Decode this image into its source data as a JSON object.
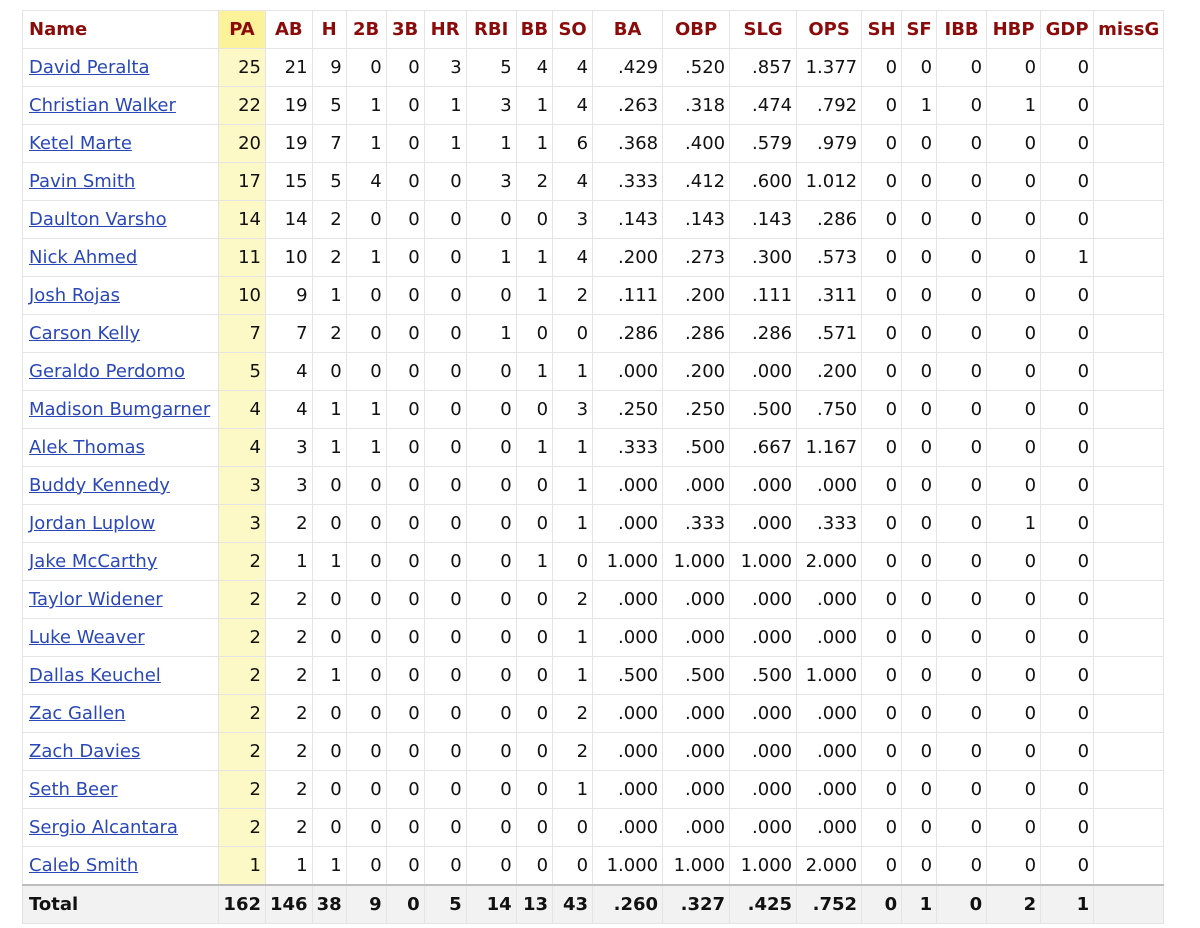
{
  "table": {
    "headers": [
      "Name",
      "PA",
      "AB",
      "H",
      "2B",
      "3B",
      "HR",
      "RBI",
      "BB",
      "SO",
      "BA",
      "OBP",
      "SLG",
      "OPS",
      "SH",
      "SF",
      "IBB",
      "HBP",
      "GDP",
      "missG"
    ],
    "rows": [
      {
        "name": "David Peralta",
        "stats": [
          "25",
          "21",
          "9",
          "0",
          "0",
          "3",
          "5",
          "4",
          "4",
          ".429",
          ".520",
          ".857",
          "1.377",
          "0",
          "0",
          "0",
          "0",
          "0",
          ""
        ]
      },
      {
        "name": "Christian Walker",
        "stats": [
          "22",
          "19",
          "5",
          "1",
          "0",
          "1",
          "3",
          "1",
          "4",
          ".263",
          ".318",
          ".474",
          ".792",
          "0",
          "1",
          "0",
          "1",
          "0",
          ""
        ]
      },
      {
        "name": "Ketel Marte",
        "stats": [
          "20",
          "19",
          "7",
          "1",
          "0",
          "1",
          "1",
          "1",
          "6",
          ".368",
          ".400",
          ".579",
          ".979",
          "0",
          "0",
          "0",
          "0",
          "0",
          ""
        ]
      },
      {
        "name": "Pavin Smith",
        "stats": [
          "17",
          "15",
          "5",
          "4",
          "0",
          "0",
          "3",
          "2",
          "4",
          ".333",
          ".412",
          ".600",
          "1.012",
          "0",
          "0",
          "0",
          "0",
          "0",
          ""
        ]
      },
      {
        "name": "Daulton Varsho",
        "stats": [
          "14",
          "14",
          "2",
          "0",
          "0",
          "0",
          "0",
          "0",
          "3",
          ".143",
          ".143",
          ".143",
          ".286",
          "0",
          "0",
          "0",
          "0",
          "0",
          ""
        ]
      },
      {
        "name": "Nick Ahmed",
        "stats": [
          "11",
          "10",
          "2",
          "1",
          "0",
          "0",
          "1",
          "1",
          "4",
          ".200",
          ".273",
          ".300",
          ".573",
          "0",
          "0",
          "0",
          "0",
          "1",
          ""
        ]
      },
      {
        "name": "Josh Rojas",
        "stats": [
          "10",
          "9",
          "1",
          "0",
          "0",
          "0",
          "0",
          "1",
          "2",
          ".111",
          ".200",
          ".111",
          ".311",
          "0",
          "0",
          "0",
          "0",
          "0",
          ""
        ]
      },
      {
        "name": "Carson Kelly",
        "stats": [
          "7",
          "7",
          "2",
          "0",
          "0",
          "0",
          "1",
          "0",
          "0",
          ".286",
          ".286",
          ".286",
          ".571",
          "0",
          "0",
          "0",
          "0",
          "0",
          ""
        ]
      },
      {
        "name": "Geraldo Perdomo",
        "stats": [
          "5",
          "4",
          "0",
          "0",
          "0",
          "0",
          "0",
          "1",
          "1",
          ".000",
          ".200",
          ".000",
          ".200",
          "0",
          "0",
          "0",
          "0",
          "0",
          ""
        ]
      },
      {
        "name": "Madison Bumgarner",
        "stats": [
          "4",
          "4",
          "1",
          "1",
          "0",
          "0",
          "0",
          "0",
          "3",
          ".250",
          ".250",
          ".500",
          ".750",
          "0",
          "0",
          "0",
          "0",
          "0",
          ""
        ]
      },
      {
        "name": "Alek Thomas",
        "stats": [
          "4",
          "3",
          "1",
          "1",
          "0",
          "0",
          "0",
          "1",
          "1",
          ".333",
          ".500",
          ".667",
          "1.167",
          "0",
          "0",
          "0",
          "0",
          "0",
          ""
        ]
      },
      {
        "name": "Buddy Kennedy",
        "stats": [
          "3",
          "3",
          "0",
          "0",
          "0",
          "0",
          "0",
          "0",
          "1",
          ".000",
          ".000",
          ".000",
          ".000",
          "0",
          "0",
          "0",
          "0",
          "0",
          ""
        ]
      },
      {
        "name": "Jordan Luplow",
        "stats": [
          "3",
          "2",
          "0",
          "0",
          "0",
          "0",
          "0",
          "0",
          "1",
          ".000",
          ".333",
          ".000",
          ".333",
          "0",
          "0",
          "0",
          "1",
          "0",
          ""
        ]
      },
      {
        "name": "Jake McCarthy",
        "stats": [
          "2",
          "1",
          "1",
          "0",
          "0",
          "0",
          "0",
          "1",
          "0",
          "1.000",
          "1.000",
          "1.000",
          "2.000",
          "0",
          "0",
          "0",
          "0",
          "0",
          ""
        ]
      },
      {
        "name": "Taylor Widener",
        "stats": [
          "2",
          "2",
          "0",
          "0",
          "0",
          "0",
          "0",
          "0",
          "2",
          ".000",
          ".000",
          ".000",
          ".000",
          "0",
          "0",
          "0",
          "0",
          "0",
          ""
        ]
      },
      {
        "name": "Luke Weaver",
        "stats": [
          "2",
          "2",
          "0",
          "0",
          "0",
          "0",
          "0",
          "0",
          "1",
          ".000",
          ".000",
          ".000",
          ".000",
          "0",
          "0",
          "0",
          "0",
          "0",
          ""
        ]
      },
      {
        "name": "Dallas Keuchel",
        "stats": [
          "2",
          "2",
          "1",
          "0",
          "0",
          "0",
          "0",
          "0",
          "1",
          ".500",
          ".500",
          ".500",
          "1.000",
          "0",
          "0",
          "0",
          "0",
          "0",
          ""
        ]
      },
      {
        "name": "Zac Gallen",
        "stats": [
          "2",
          "2",
          "0",
          "0",
          "0",
          "0",
          "0",
          "0",
          "2",
          ".000",
          ".000",
          ".000",
          ".000",
          "0",
          "0",
          "0",
          "0",
          "0",
          ""
        ]
      },
      {
        "name": "Zach Davies",
        "stats": [
          "2",
          "2",
          "0",
          "0",
          "0",
          "0",
          "0",
          "0",
          "2",
          ".000",
          ".000",
          ".000",
          ".000",
          "0",
          "0",
          "0",
          "0",
          "0",
          ""
        ]
      },
      {
        "name": "Seth Beer",
        "stats": [
          "2",
          "2",
          "0",
          "0",
          "0",
          "0",
          "0",
          "0",
          "1",
          ".000",
          ".000",
          ".000",
          ".000",
          "0",
          "0",
          "0",
          "0",
          "0",
          ""
        ]
      },
      {
        "name": "Sergio Alcantara",
        "stats": [
          "2",
          "2",
          "0",
          "0",
          "0",
          "0",
          "0",
          "0",
          "0",
          ".000",
          ".000",
          ".000",
          ".000",
          "0",
          "0",
          "0",
          "0",
          "0",
          ""
        ]
      },
      {
        "name": "Caleb Smith",
        "stats": [
          "1",
          "1",
          "1",
          "0",
          "0",
          "0",
          "0",
          "0",
          "0",
          "1.000",
          "1.000",
          "1.000",
          "2.000",
          "0",
          "0",
          "0",
          "0",
          "0",
          ""
        ]
      }
    ],
    "total": {
      "name": "Total",
      "stats": [
        "162",
        "146",
        "38",
        "9",
        "0",
        "5",
        "14",
        "13",
        "43",
        ".260",
        ".327",
        ".425",
        ".752",
        "0",
        "1",
        "0",
        "2",
        "1",
        ""
      ]
    }
  },
  "colors": {
    "header_text": "#8b0b0b",
    "link": "#2a47b8",
    "highlight_header": "#fbf29a",
    "highlight_column": "#fdf9c6",
    "total_row_bg": "#f2f2f2"
  }
}
